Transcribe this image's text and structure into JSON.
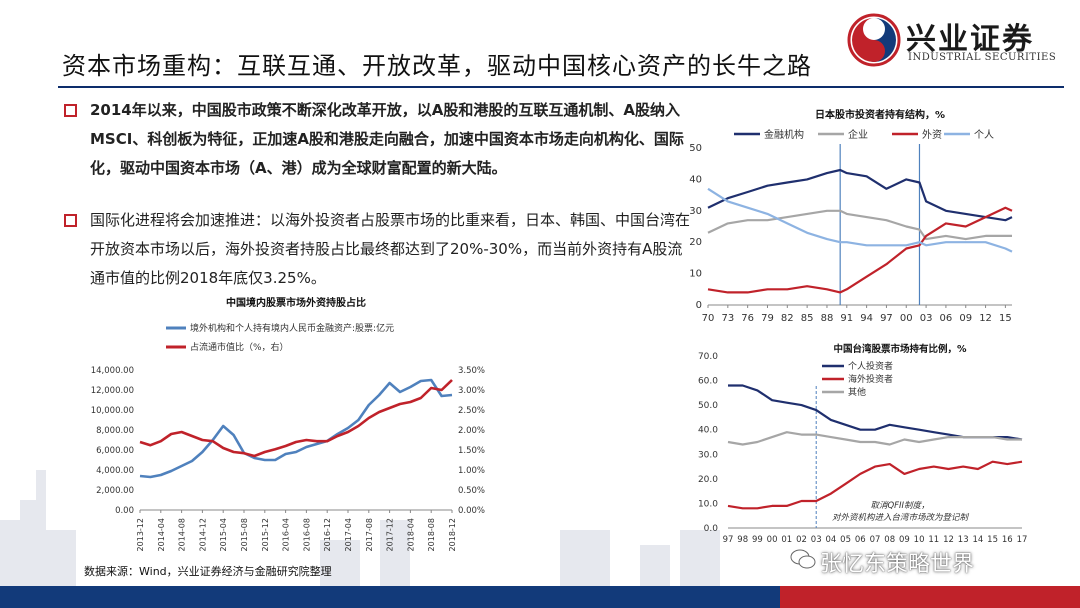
{
  "header": {
    "title": "资本市场重构：互联互通、开放改革，驱动中国核心资产的长牛之路",
    "logo_cn": "兴业证券",
    "logo_en": "INDUSTRIAL SECURITIES"
  },
  "bullets": [
    "2014年以来，中国股市政策不断深化改革开放，以A股和港股的互联互通机制、A股纳入MSCI、科创板为特征，正加速A股和港股走向融合，加速中国资本市场走向机构化、国际化，驱动中国资本市场（A、港）成为全球财富配置的新大陆。",
    "国际化进程将会加速推进：以海外投资者占股票市场的比重来看，日本、韩国、中国台湾在开放资本市场以后，海外投资者持股占比最终都达到了20%-30%，而当前外资持有A股流通市值的比例2018年底仅3.25%。"
  ],
  "source": "数据来源：Wind，兴业证券经济与金融研究院整理",
  "watermark": "张忆东策略世界",
  "colors": {
    "navy": "#1f2f6e",
    "red": "#c0222a",
    "blue": "#4f81bd",
    "gray": "#a6a6a6",
    "lightblue": "#8db3e2"
  },
  "chart_data": [
    {
      "type": "line",
      "title": "中国境内股票市场外资持股占比",
      "x": [
        "2013-12",
        "2014-02",
        "2014-04",
        "2014-06",
        "2014-08",
        "2014-10",
        "2014-12",
        "2015-02",
        "2015-04",
        "2015-06",
        "2015-08",
        "2015-10",
        "2015-12",
        "2016-02",
        "2016-04",
        "2016-06",
        "2016-08",
        "2016-10",
        "2016-12",
        "2017-02",
        "2017-04",
        "2017-06",
        "2017-08",
        "2017-10",
        "2017-12",
        "2018-02",
        "2018-04",
        "2018-06",
        "2018-08",
        "2018-10",
        "2018-12"
      ],
      "x_tick_labels": [
        "2013-12",
        "2014-04",
        "2014-08",
        "2014-12",
        "2015-04",
        "2015-08",
        "2015-12",
        "2016-04",
        "2016-08",
        "2016-12",
        "2017-04",
        "2017-08",
        "2017-12",
        "2018-04",
        "2018-08",
        "2018-12"
      ],
      "series": [
        {
          "name": "境外机构和个人持有境内人民币金融资产:股票:亿元",
          "axis": "left",
          "color": "#4f81bd",
          "values": [
            3400,
            3300,
            3500,
            3900,
            4400,
            4900,
            5800,
            7000,
            8400,
            7500,
            5700,
            5200,
            5000,
            5000,
            5600,
            5800,
            6300,
            6600,
            6900,
            7600,
            8200,
            9000,
            10500,
            11500,
            12700,
            11800,
            12300,
            12900,
            13000,
            11400,
            11500
          ]
        },
        {
          "name": "占流通市值比（%，右）",
          "axis": "right",
          "color": "#c0222a",
          "values": [
            1.7,
            1.62,
            1.72,
            1.9,
            1.95,
            1.85,
            1.75,
            1.72,
            1.55,
            1.45,
            1.42,
            1.35,
            1.45,
            1.52,
            1.6,
            1.7,
            1.75,
            1.72,
            1.72,
            1.85,
            1.95,
            2.1,
            2.3,
            2.45,
            2.55,
            2.65,
            2.7,
            2.8,
            3.05,
            3.0,
            3.25
          ]
        }
      ],
      "yleft": {
        "ticks": [
          "0.00",
          "2,000.00",
          "4,000.00",
          "6,000.00",
          "8,000.00",
          "10,000.00",
          "12,000.00",
          "14,000.00"
        ],
        "ylim": [
          0,
          14000
        ]
      },
      "yright": {
        "ticks": [
          "0.00%",
          "0.50%",
          "1.00%",
          "1.50%",
          "2.00%",
          "2.50%",
          "3.00%",
          "3.50%"
        ],
        "ylim": [
          0,
          3.5
        ]
      },
      "legend": "top-left"
    },
    {
      "type": "line",
      "title": "日本股市投资者持有结构，%",
      "x": [
        1970,
        1973,
        1976,
        1979,
        1982,
        1985,
        1988,
        1990,
        1991,
        1994,
        1997,
        2000,
        2002,
        2003,
        2006,
        2009,
        2012,
        2015,
        2016
      ],
      "x_tick_labels": [
        "70",
        "73",
        "76",
        "79",
        "82",
        "85",
        "88",
        "91",
        "94",
        "97",
        "00",
        "03",
        "06",
        "09",
        "12",
        "15"
      ],
      "series": [
        {
          "name": "金融机构",
          "color": "#1f2f6e",
          "values": [
            31,
            34,
            36,
            38,
            39,
            40,
            42,
            43,
            42,
            41,
            37,
            40,
            39,
            33,
            30,
            29,
            28,
            27,
            28
          ]
        },
        {
          "name": "企业",
          "color": "#a6a6a6",
          "values": [
            23,
            26,
            27,
            27,
            28,
            29,
            30,
            30,
            29,
            28,
            27,
            25,
            24,
            21,
            22,
            21,
            22,
            22,
            22
          ]
        },
        {
          "name": "外资",
          "color": "#c0222a",
          "values": [
            5,
            4,
            4,
            5,
            5,
            6,
            5,
            4,
            5,
            9,
            13,
            18,
            19,
            22,
            26,
            25,
            28,
            31,
            30
          ]
        },
        {
          "name": "个人",
          "color": "#8db3e2",
          "values": [
            37,
            33,
            31,
            29,
            26,
            23,
            21,
            20,
            20,
            19,
            19,
            19,
            20,
            19,
            20,
            20,
            20,
            18,
            17
          ]
        }
      ],
      "ylim": [
        0,
        50
      ],
      "y_ticks": [
        "0",
        "10",
        "20",
        "30",
        "40",
        "50"
      ],
      "vlines": [
        1990,
        2002
      ],
      "legend": "top"
    },
    {
      "type": "line",
      "title": "中国台湾股票市场持有比例，%",
      "x": [
        "97",
        "98",
        "99",
        "00",
        "01",
        "02",
        "03",
        "04",
        "05",
        "06",
        "07",
        "08",
        "09",
        "10",
        "11",
        "12",
        "13",
        "14",
        "15",
        "16",
        "17"
      ],
      "series": [
        {
          "name": "个人投资者",
          "color": "#1f2f6e",
          "values": [
            58,
            58,
            56,
            52,
            51,
            50,
            48,
            44,
            42,
            40,
            40,
            42,
            41,
            40,
            39,
            38,
            37,
            37,
            37,
            37,
            36
          ]
        },
        {
          "name": "海外投资者",
          "color": "#c0222a",
          "values": [
            9,
            8,
            8,
            9,
            9,
            11,
            11,
            14,
            18,
            22,
            25,
            26,
            22,
            24,
            25,
            24,
            25,
            24,
            27,
            26,
            27
          ]
        },
        {
          "name": "其他",
          "color": "#a6a6a6",
          "values": [
            35,
            34,
            35,
            37,
            39,
            38,
            38,
            37,
            36,
            35,
            35,
            34,
            36,
            35,
            36,
            37,
            37,
            37,
            37,
            36,
            36
          ]
        }
      ],
      "ylim": [
        0,
        70
      ],
      "y_ticks": [
        "0.0",
        "10.0",
        "20.0",
        "30.0",
        "40.0",
        "50.0",
        "60.0",
        "70.0"
      ],
      "vlines": [
        "03"
      ],
      "annotation": "取消QFII制度，对外资机构进入台湾市场改为登记制",
      "legend": "top"
    }
  ]
}
